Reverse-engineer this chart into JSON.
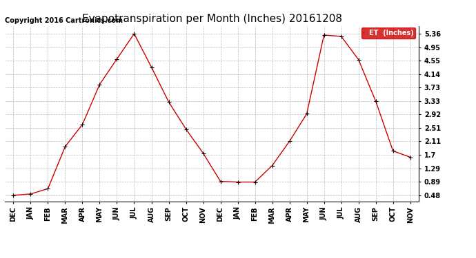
{
  "title": "Evapotranspiration per Month (Inches) 20161208",
  "copyright": "Copyright 2016 Cartronics.com",
  "legend_label": "ET  (Inches)",
  "line_color": "#cc0000",
  "marker_color": "#000000",
  "x_labels": [
    "DEC",
    "JAN",
    "FEB",
    "MAR",
    "APR",
    "MAY",
    "JUN",
    "JUL",
    "AUG",
    "SEP",
    "OCT",
    "NOV",
    "DEC",
    "JAN",
    "FEB",
    "MAR",
    "APR",
    "MAY",
    "JUN",
    "JUL",
    "AUG",
    "SEP",
    "OCT",
    "NOV"
  ],
  "y_values": [
    0.48,
    0.52,
    0.68,
    1.95,
    2.62,
    3.83,
    4.6,
    5.36,
    4.35,
    3.3,
    2.48,
    1.75,
    0.9,
    0.88,
    0.88,
    1.38,
    2.11,
    2.94,
    5.32,
    5.28,
    4.58,
    3.32,
    1.82,
    1.63
  ],
  "yticks": [
    0.48,
    0.89,
    1.29,
    1.7,
    2.11,
    2.51,
    2.92,
    3.33,
    3.73,
    4.14,
    4.55,
    4.95,
    5.36
  ],
  "ylim": [
    0.3,
    5.6
  ],
  "background_color": "#ffffff",
  "grid_color": "#bbbbbb",
  "title_fontsize": 11,
  "tick_fontsize": 7,
  "copyright_fontsize": 7
}
